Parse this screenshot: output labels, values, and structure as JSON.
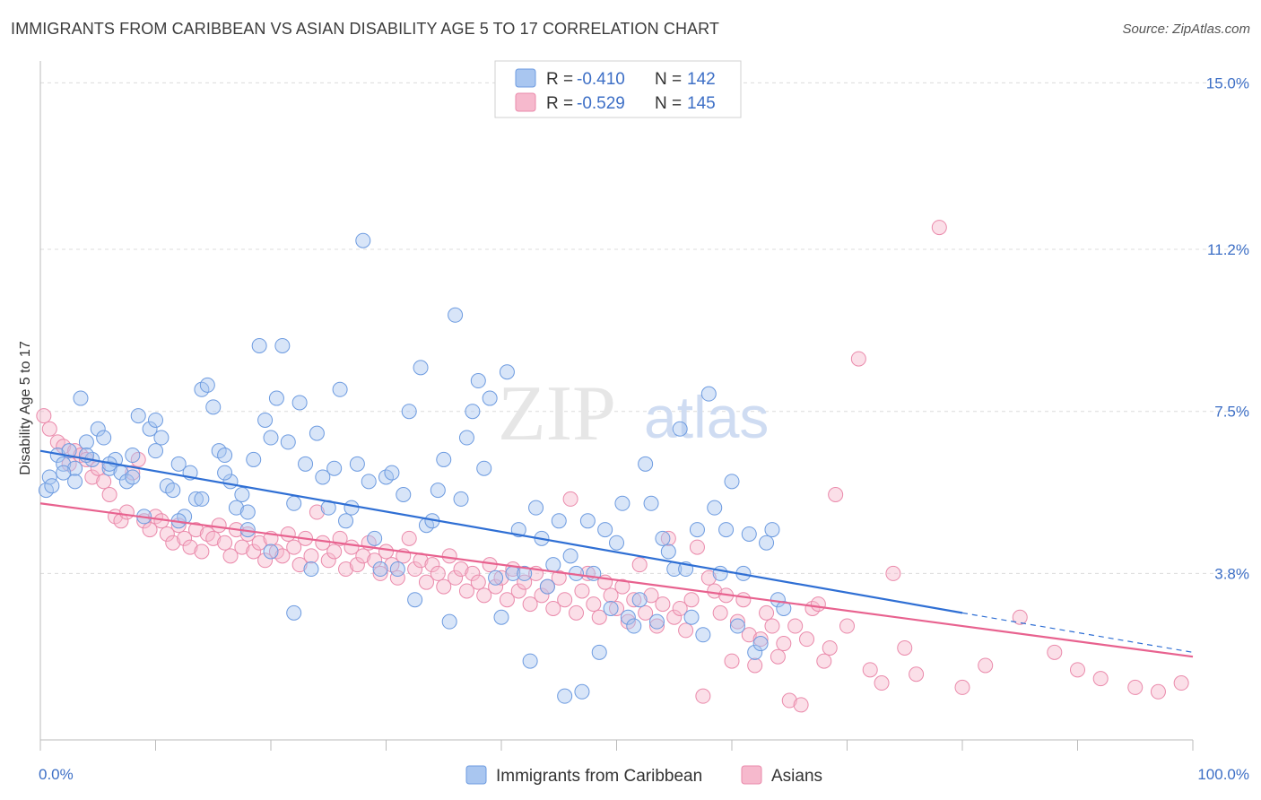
{
  "title": "IMMIGRANTS FROM CARIBBEAN VS ASIAN DISABILITY AGE 5 TO 17 CORRELATION CHART",
  "source": "Source: ZipAtlas.com",
  "watermark": {
    "zip": "ZIP",
    "atlas": "atlas"
  },
  "legend_stats": {
    "r_label": "R =",
    "n_label": "N =",
    "blue": {
      "r": "-0.410",
      "n": "142"
    },
    "pink": {
      "r": "-0.529",
      "n": "145"
    }
  },
  "colors": {
    "blue_fill": "#a9c6f0",
    "blue_stroke": "#6d9be0",
    "blue_line": "#2f6fd4",
    "pink_fill": "#f6b9cd",
    "pink_stroke": "#ea8aab",
    "pink_line": "#e8628f",
    "tick_text": "#3d6fc6",
    "grid": "#dcdcdc"
  },
  "chart_data": {
    "type": "scatter",
    "title": "IMMIGRANTS FROM CARIBBEAN VS ASIAN DISABILITY AGE 5 TO 17 CORRELATION CHART",
    "xlabel": "",
    "ylabel": "Disability Age 5 to 17",
    "xlim": [
      0,
      100
    ],
    "ylim": [
      0,
      15.5
    ],
    "x_tick_labels": [
      "0.0%",
      "100.0%"
    ],
    "y_ticks": [
      3.8,
      7.5,
      11.2,
      15.0
    ],
    "y_tick_labels": [
      "3.8%",
      "7.5%",
      "11.2%",
      "15.0%"
    ],
    "grid": true,
    "legend_position": "bottom",
    "series": [
      {
        "name": "Immigrants from Caribbean",
        "r": -0.41,
        "n": 142,
        "trend": {
          "x0": 0,
          "y0": 6.6,
          "x1": 80,
          "y1": 2.9,
          "dashed_to": {
            "x": 100,
            "y": 2.0
          }
        },
        "points": [
          [
            0.5,
            5.7
          ],
          [
            0.8,
            6.0
          ],
          [
            1,
            5.8
          ],
          [
            1.5,
            6.5
          ],
          [
            2,
            6.3
          ],
          [
            2.5,
            6.6
          ],
          [
            3,
            6.2
          ],
          [
            3.5,
            7.8
          ],
          [
            4,
            6.8
          ],
          [
            4.5,
            6.4
          ],
          [
            5,
            7.1
          ],
          [
            5.5,
            6.9
          ],
          [
            6,
            6.2
          ],
          [
            6.5,
            6.4
          ],
          [
            7,
            6.1
          ],
          [
            7.5,
            5.9
          ],
          [
            8,
            6.5
          ],
          [
            8.5,
            7.4
          ],
          [
            9,
            5.1
          ],
          [
            9.5,
            7.1
          ],
          [
            10,
            7.3
          ],
          [
            10.5,
            6.9
          ],
          [
            11,
            5.8
          ],
          [
            11.5,
            5.7
          ],
          [
            12,
            6.3
          ],
          [
            12.5,
            5.1
          ],
          [
            13,
            6.1
          ],
          [
            13.5,
            5.5
          ],
          [
            14,
            8.0
          ],
          [
            14.5,
            8.1
          ],
          [
            15,
            7.6
          ],
          [
            15.5,
            6.6
          ],
          [
            16,
            6.5
          ],
          [
            16.5,
            5.9
          ],
          [
            17,
            5.3
          ],
          [
            17.5,
            5.6
          ],
          [
            18,
            4.8
          ],
          [
            18.5,
            6.4
          ],
          [
            19,
            9.0
          ],
          [
            19.5,
            7.3
          ],
          [
            20,
            6.9
          ],
          [
            20.5,
            7.8
          ],
          [
            21,
            9.0
          ],
          [
            21.5,
            6.8
          ],
          [
            22,
            5.4
          ],
          [
            22.5,
            7.7
          ],
          [
            23,
            6.3
          ],
          [
            23.5,
            3.9
          ],
          [
            24,
            7.0
          ],
          [
            24.5,
            6.0
          ],
          [
            25,
            5.3
          ],
          [
            25.5,
            6.2
          ],
          [
            26,
            8.0
          ],
          [
            26.5,
            5.0
          ],
          [
            27,
            5.3
          ],
          [
            27.5,
            6.3
          ],
          [
            28,
            11.4
          ],
          [
            28.5,
            5.9
          ],
          [
            29,
            4.6
          ],
          [
            29.5,
            3.9
          ],
          [
            30,
            6.0
          ],
          [
            30.5,
            6.1
          ],
          [
            31,
            3.9
          ],
          [
            31.5,
            5.6
          ],
          [
            32,
            7.5
          ],
          [
            32.5,
            3.2
          ],
          [
            33,
            8.5
          ],
          [
            33.5,
            4.9
          ],
          [
            34,
            5.0
          ],
          [
            34.5,
            5.7
          ],
          [
            35,
            6.4
          ],
          [
            35.5,
            2.7
          ],
          [
            36,
            9.7
          ],
          [
            36.5,
            5.5
          ],
          [
            37,
            6.9
          ],
          [
            37.5,
            7.5
          ],
          [
            38,
            8.2
          ],
          [
            38.5,
            6.2
          ],
          [
            39,
            7.8
          ],
          [
            39.5,
            3.7
          ],
          [
            40,
            2.8
          ],
          [
            40.5,
            8.4
          ],
          [
            41,
            3.8
          ],
          [
            41.5,
            4.8
          ],
          [
            42,
            3.8
          ],
          [
            42.5,
            1.8
          ],
          [
            43,
            5.3
          ],
          [
            43.5,
            4.6
          ],
          [
            44,
            3.5
          ],
          [
            44.5,
            4.0
          ],
          [
            45,
            5.0
          ],
          [
            45.5,
            1.0
          ],
          [
            46,
            4.2
          ],
          [
            46.5,
            3.8
          ],
          [
            47,
            1.1
          ],
          [
            47.5,
            5.0
          ],
          [
            48,
            3.8
          ],
          [
            48.5,
            2.0
          ],
          [
            49,
            4.8
          ],
          [
            49.5,
            3.0
          ],
          [
            50,
            4.5
          ],
          [
            50.5,
            5.4
          ],
          [
            51,
            2.8
          ],
          [
            51.5,
            2.6
          ],
          [
            52,
            3.2
          ],
          [
            52.5,
            6.3
          ],
          [
            53,
            5.4
          ],
          [
            53.5,
            2.7
          ],
          [
            54,
            4.6
          ],
          [
            54.5,
            4.3
          ],
          [
            55,
            3.9
          ],
          [
            55.5,
            7.1
          ],
          [
            56,
            3.9
          ],
          [
            56.5,
            2.8
          ],
          [
            57,
            4.8
          ],
          [
            57.5,
            2.4
          ],
          [
            58,
            7.9
          ],
          [
            58.5,
            5.3
          ],
          [
            59,
            3.8
          ],
          [
            59.5,
            4.8
          ],
          [
            60,
            5.9
          ],
          [
            60.5,
            2.6
          ],
          [
            61,
            3.8
          ],
          [
            61.5,
            4.7
          ],
          [
            62,
            2.0
          ],
          [
            62.5,
            2.2
          ],
          [
            63,
            4.5
          ],
          [
            63.5,
            4.8
          ],
          [
            64,
            3.2
          ],
          [
            64.5,
            3.0
          ],
          [
            4,
            6.5
          ],
          [
            6,
            6.3
          ],
          [
            3,
            5.9
          ],
          [
            2,
            6.1
          ],
          [
            8,
            6.0
          ],
          [
            10,
            6.6
          ],
          [
            12,
            5.0
          ],
          [
            14,
            5.5
          ],
          [
            16,
            6.1
          ],
          [
            18,
            5.2
          ],
          [
            20,
            4.3
          ],
          [
            22,
            2.9
          ]
        ]
      },
      {
        "name": "Asians",
        "r": -0.529,
        "n": 145,
        "trend": {
          "x0": 0,
          "y0": 5.4,
          "x1": 100,
          "y1": 1.9
        },
        "points": [
          [
            0.3,
            7.4
          ],
          [
            0.8,
            7.1
          ],
          [
            1.5,
            6.8
          ],
          [
            2,
            6.7
          ],
          [
            2.5,
            6.3
          ],
          [
            3,
            6.6
          ],
          [
            3.5,
            6.5
          ],
          [
            4,
            6.4
          ],
          [
            4.5,
            6.0
          ],
          [
            5,
            6.2
          ],
          [
            5.5,
            5.9
          ],
          [
            6,
            5.6
          ],
          [
            6.5,
            5.1
          ],
          [
            7,
            5.0
          ],
          [
            7.5,
            5.2
          ],
          [
            8,
            6.1
          ],
          [
            8.5,
            6.4
          ],
          [
            9,
            5.0
          ],
          [
            9.5,
            4.8
          ],
          [
            10,
            5.1
          ],
          [
            10.5,
            5.0
          ],
          [
            11,
            4.7
          ],
          [
            11.5,
            4.5
          ],
          [
            12,
            4.9
          ],
          [
            12.5,
            4.6
          ],
          [
            13,
            4.4
          ],
          [
            13.5,
            4.8
          ],
          [
            14,
            4.3
          ],
          [
            14.5,
            4.7
          ],
          [
            15,
            4.6
          ],
          [
            15.5,
            4.9
          ],
          [
            16,
            4.5
          ],
          [
            16.5,
            4.2
          ],
          [
            17,
            4.8
          ],
          [
            17.5,
            4.4
          ],
          [
            18,
            4.7
          ],
          [
            18.5,
            4.3
          ],
          [
            19,
            4.5
          ],
          [
            19.5,
            4.1
          ],
          [
            20,
            4.6
          ],
          [
            20.5,
            4.3
          ],
          [
            21,
            4.2
          ],
          [
            21.5,
            4.7
          ],
          [
            22,
            4.4
          ],
          [
            22.5,
            4.0
          ],
          [
            23,
            4.6
          ],
          [
            23.5,
            4.2
          ],
          [
            24,
            5.2
          ],
          [
            24.5,
            4.5
          ],
          [
            25,
            4.1
          ],
          [
            25.5,
            4.3
          ],
          [
            26,
            4.6
          ],
          [
            26.5,
            3.9
          ],
          [
            27,
            4.4
          ],
          [
            27.5,
            4.0
          ],
          [
            28,
            4.2
          ],
          [
            28.5,
            4.5
          ],
          [
            29,
            4.1
          ],
          [
            29.5,
            3.8
          ],
          [
            30,
            4.3
          ],
          [
            30.5,
            4.0
          ],
          [
            31,
            3.7
          ],
          [
            31.5,
            4.2
          ],
          [
            32,
            4.6
          ],
          [
            32.5,
            3.9
          ],
          [
            33,
            4.1
          ],
          [
            33.5,
            3.6
          ],
          [
            34,
            4.0
          ],
          [
            34.5,
            3.8
          ],
          [
            35,
            3.5
          ],
          [
            35.5,
            4.2
          ],
          [
            36,
            3.7
          ],
          [
            36.5,
            3.9
          ],
          [
            37,
            3.4
          ],
          [
            37.5,
            3.8
          ],
          [
            38,
            3.6
          ],
          [
            38.5,
            3.3
          ],
          [
            39,
            4.0
          ],
          [
            39.5,
            3.5
          ],
          [
            40,
            3.7
          ],
          [
            40.5,
            3.2
          ],
          [
            41,
            3.9
          ],
          [
            41.5,
            3.4
          ],
          [
            42,
            3.6
          ],
          [
            42.5,
            3.1
          ],
          [
            43,
            3.8
          ],
          [
            43.5,
            3.3
          ],
          [
            44,
            3.5
          ],
          [
            44.5,
            3.0
          ],
          [
            45,
            3.7
          ],
          [
            45.5,
            3.2
          ],
          [
            46,
            5.5
          ],
          [
            46.5,
            2.9
          ],
          [
            47,
            3.4
          ],
          [
            47.5,
            3.8
          ],
          [
            48,
            3.1
          ],
          [
            48.5,
            2.8
          ],
          [
            49,
            3.6
          ],
          [
            49.5,
            3.3
          ],
          [
            50,
            3.0
          ],
          [
            50.5,
            3.5
          ],
          [
            51,
            2.7
          ],
          [
            51.5,
            3.2
          ],
          [
            52,
            4.0
          ],
          [
            52.5,
            2.9
          ],
          [
            53,
            3.3
          ],
          [
            53.5,
            2.6
          ],
          [
            54,
            3.1
          ],
          [
            54.5,
            4.6
          ],
          [
            55,
            2.8
          ],
          [
            55.5,
            3.0
          ],
          [
            56,
            2.5
          ],
          [
            56.5,
            3.2
          ],
          [
            57,
            4.4
          ],
          [
            57.5,
            1.0
          ],
          [
            58,
            3.7
          ],
          [
            58.5,
            3.4
          ],
          [
            59,
            2.9
          ],
          [
            59.5,
            3.3
          ],
          [
            60,
            1.8
          ],
          [
            60.5,
            2.7
          ],
          [
            61,
            3.2
          ],
          [
            61.5,
            2.4
          ],
          [
            62,
            1.7
          ],
          [
            62.5,
            2.3
          ],
          [
            63,
            2.9
          ],
          [
            63.5,
            2.6
          ],
          [
            64,
            1.9
          ],
          [
            64.5,
            2.2
          ],
          [
            65,
            0.9
          ],
          [
            65.5,
            2.6
          ],
          [
            66,
            0.8
          ],
          [
            66.5,
            2.3
          ],
          [
            67,
            3.0
          ],
          [
            67.5,
            3.1
          ],
          [
            68,
            1.8
          ],
          [
            68.5,
            2.1
          ],
          [
            69,
            5.6
          ],
          [
            70,
            2.6
          ],
          [
            71,
            8.7
          ],
          [
            72,
            1.6
          ],
          [
            73,
            1.3
          ],
          [
            74,
            3.8
          ],
          [
            75,
            2.1
          ],
          [
            76,
            1.5
          ],
          [
            78,
            11.7
          ],
          [
            80,
            1.2
          ],
          [
            82,
            1.7
          ],
          [
            85,
            2.8
          ],
          [
            88,
            2.0
          ],
          [
            90,
            1.6
          ],
          [
            92,
            1.4
          ],
          [
            95,
            1.2
          ],
          [
            97,
            1.1
          ],
          [
            99,
            1.3
          ]
        ]
      }
    ]
  },
  "bottom_legend": {
    "blue_label": "Immigrants from Caribbean",
    "pink_label": "Asians"
  }
}
